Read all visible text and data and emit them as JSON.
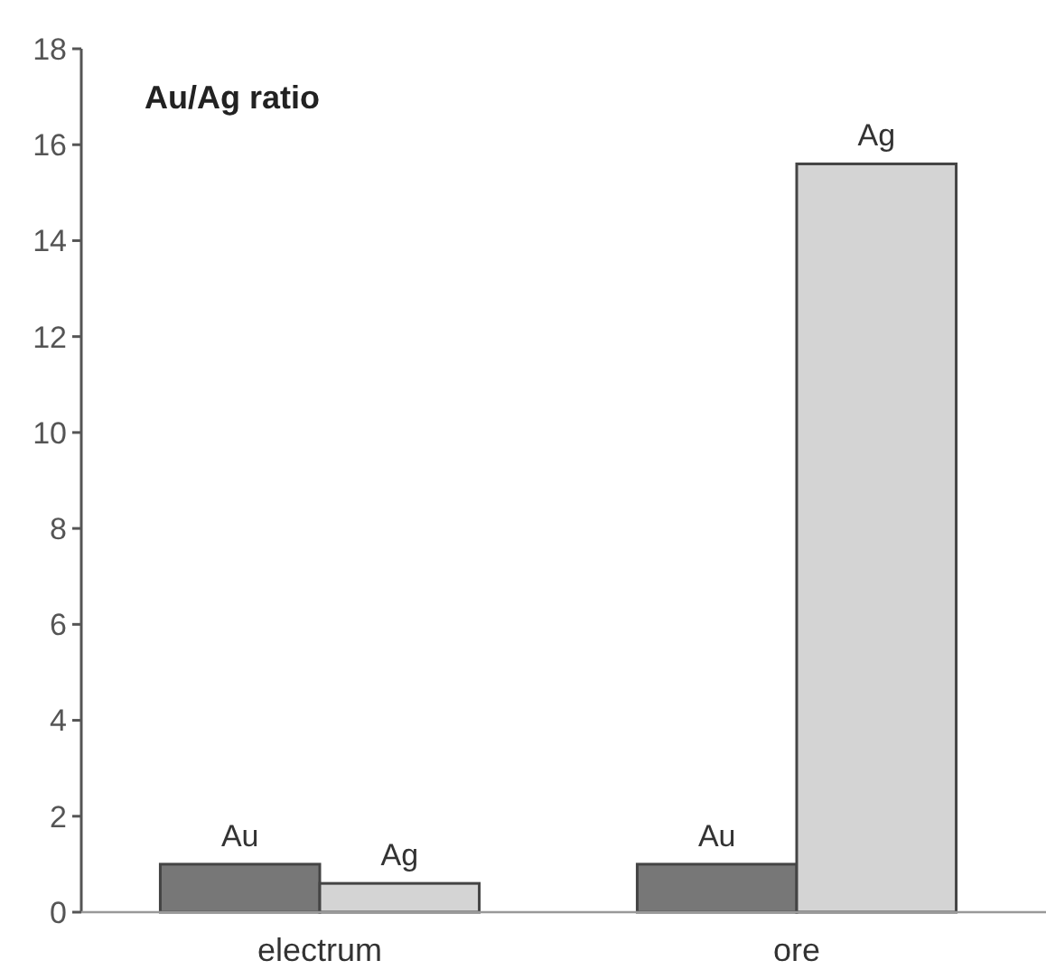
{
  "chart_data": {
    "type": "bar",
    "title": "Au/Ag ratio",
    "categories": [
      "electrum",
      "ore"
    ],
    "series": [
      {
        "name": "Au",
        "color": "#777777",
        "values": [
          1,
          1
        ]
      },
      {
        "name": "Ag",
        "color": "#d4d4d4",
        "values": [
          0.6,
          15.6
        ]
      }
    ],
    "ylim": [
      0,
      18
    ],
    "yticks": [
      0,
      2,
      4,
      6,
      8,
      10,
      12,
      14,
      16,
      18
    ],
    "grid": false
  }
}
